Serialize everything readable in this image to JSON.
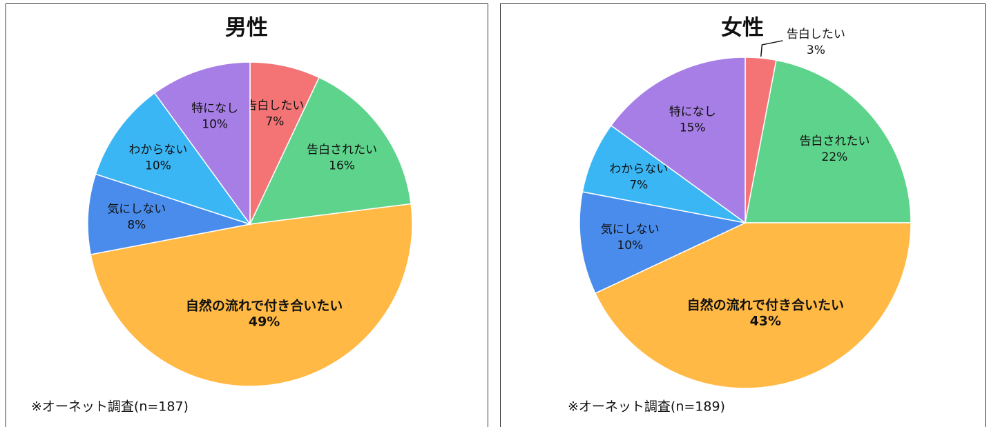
{
  "chart_data": [
    {
      "type": "pie",
      "title": "男性",
      "categories": [
        "告白したい",
        "告白されたい",
        "自然の流れで付き合いたい",
        "気にしない",
        "わからない",
        "特になし"
      ],
      "values": [
        7,
        16,
        49,
        8,
        10,
        10
      ],
      "value_labels": [
        "7%",
        "16%",
        "49%",
        "8%",
        "10%",
        "10%"
      ],
      "colors": [
        "#f47476",
        "#5ed38c",
        "#ffb944",
        "#4a8cec",
        "#3bb6f5",
        "#a77ee6"
      ],
      "note": "※オーネット調査(n=187)"
    },
    {
      "type": "pie",
      "title": "女性",
      "categories": [
        "告白したい",
        "告白されたい",
        "自然の流れで付き合いたい",
        "気にしない",
        "わからない",
        "特になし"
      ],
      "values": [
        3,
        22,
        43,
        10,
        7,
        15
      ],
      "value_labels": [
        "3%",
        "22%",
        "43%",
        "10%",
        "7%",
        "15%"
      ],
      "colors": [
        "#f47476",
        "#5ed38c",
        "#ffb944",
        "#4a8cec",
        "#3bb6f5",
        "#a77ee6"
      ],
      "note": "※オーネット調査(n=189)"
    }
  ]
}
